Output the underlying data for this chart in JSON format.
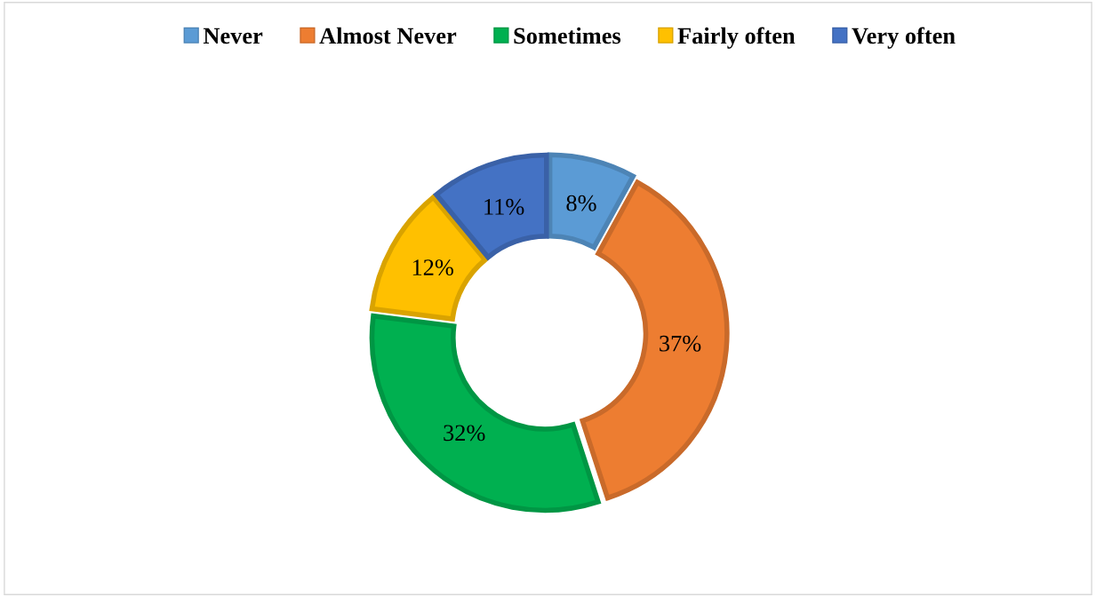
{
  "chart_data": {
    "type": "donut",
    "categories": [
      "Never",
      "Almost Never",
      "Sometimes",
      "Fairly often",
      "Very often"
    ],
    "values": [
      8,
      37,
      32,
      12,
      11
    ],
    "colors": [
      "#5b9bd5",
      "#ed7d31",
      "#00b050",
      "#ffc000",
      "#4472c4"
    ],
    "value_labels": [
      "8%",
      "37%",
      "32%",
      "12%",
      "11%"
    ],
    "legend": "top"
  }
}
